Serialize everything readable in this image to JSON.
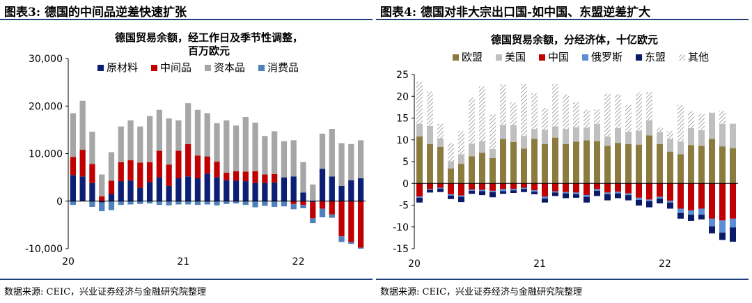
{
  "left": {
    "panel_title": "图表3: 德国的中间品逆差快速扩张",
    "source": "数据来源: CEIC，兴业证券经济与金融研究院整理"
  },
  "right": {
    "panel_title": "图表4: 德国对非大宗出口国-如中国、东盟逆差扩大",
    "source": "数据来源: CEIC，兴业证券经济与金融研究院整理"
  },
  "chart_data": [
    {
      "type": "bar",
      "stacked": true,
      "title": "德国贸易余额，经工作日及季节性调整，百万欧元",
      "title_lines": [
        "德国贸易余额，经工作日及季节性调整，",
        "百万欧元"
      ],
      "ylim": [
        -10000,
        30000
      ],
      "yticks": [
        -10000,
        0,
        10000,
        20000,
        30000
      ],
      "ytick_labels": [
        "-10,000",
        "0",
        "10,000",
        "20,000",
        "30,000"
      ],
      "xtick_labels": [
        "20",
        "21",
        "22"
      ],
      "xtick_index": [
        0,
        12,
        24
      ],
      "legend_position": "top",
      "categories": [
        "2020-01",
        "2020-02",
        "2020-03",
        "2020-04",
        "2020-05",
        "2020-06",
        "2020-07",
        "2020-08",
        "2020-09",
        "2020-10",
        "2020-11",
        "2020-12",
        "2021-01",
        "2021-02",
        "2021-03",
        "2021-04",
        "2021-05",
        "2021-06",
        "2021-07",
        "2021-08",
        "2021-09",
        "2021-10",
        "2021-11",
        "2021-12",
        "2022-01",
        "2022-02",
        "2022-03",
        "2022-04",
        "2022-05",
        "2022-06",
        "2022-07"
      ],
      "series": [
        {
          "name": "原材料",
          "color": "#0b1f74",
          "values": [
            5500,
            5200,
            3800,
            -300,
            1500,
            4200,
            4300,
            2800,
            4000,
            5000,
            3200,
            4800,
            5200,
            4800,
            5800,
            5000,
            4400,
            4300,
            4200,
            3800,
            3800,
            3900,
            5000,
            5200,
            1800,
            -200,
            6800,
            5200,
            3200,
            4400,
            4800
          ]
        },
        {
          "name": "中间品",
          "color": "#c00000",
          "values": [
            3800,
            5600,
            4000,
            1000,
            2800,
            4000,
            4300,
            5300,
            4200,
            5600,
            4500,
            5800,
            6800,
            4800,
            3600,
            3300,
            1600,
            2000,
            2000,
            2500,
            1800,
            1800,
            0,
            -600,
            -800,
            -3400,
            -1600,
            -2800,
            -7400,
            -8600,
            -9800
          ]
        },
        {
          "name": "资本品",
          "color": "#a6a6a6",
          "values": [
            9200,
            10300,
            6800,
            4600,
            6000,
            7500,
            8400,
            7600,
            9700,
            8600,
            9700,
            6400,
            8600,
            9600,
            9100,
            8100,
            11000,
            9600,
            11500,
            10200,
            8100,
            9000,
            7600,
            7600,
            6400,
            3500,
            7400,
            10000,
            9000,
            7600,
            8000
          ]
        },
        {
          "name": "消费品",
          "color": "#4f81bd",
          "values": [
            -800,
            0,
            -1200,
            -1800,
            -1900,
            -800,
            -700,
            -600,
            -500,
            -800,
            -900,
            -700,
            -700,
            -800,
            -700,
            -900,
            -600,
            -500,
            -800,
            -1300,
            -1000,
            -1200,
            -1100,
            -1100,
            -700,
            -1000,
            -1800,
            -700,
            -1200,
            -400,
            -200
          ]
        }
      ]
    },
    {
      "type": "bar",
      "stacked": true,
      "title": "德国贸易余额，分经济体，十亿欧元",
      "ylim": [
        -15,
        25
      ],
      "yticks": [
        -15,
        -10,
        -5,
        0,
        5,
        10,
        15,
        20,
        25
      ],
      "ytick_labels": [
        "-15",
        "-10",
        "-5",
        "0",
        "5",
        "10",
        "15",
        "20",
        "25"
      ],
      "xtick_labels": [
        "20",
        "21",
        "22"
      ],
      "xtick_index": [
        0,
        12,
        24
      ],
      "legend_position": "top",
      "categories": [
        "2020-01",
        "2020-02",
        "2020-03",
        "2020-04",
        "2020-05",
        "2020-06",
        "2020-07",
        "2020-08",
        "2020-09",
        "2020-10",
        "2020-11",
        "2020-12",
        "2021-01",
        "2021-02",
        "2021-03",
        "2021-04",
        "2021-05",
        "2021-06",
        "2021-07",
        "2021-08",
        "2021-09",
        "2021-10",
        "2021-11",
        "2021-12",
        "2022-01",
        "2022-02",
        "2022-03",
        "2022-04",
        "2022-05",
        "2022-06",
        "2022-07"
      ],
      "series": [
        {
          "name": "欧盟",
          "color": "#8c7b3f",
          "pattern": "solid",
          "values": [
            10.8,
            9.0,
            8.4,
            3.4,
            4.5,
            6.2,
            7.0,
            5.8,
            10.2,
            9.5,
            8.0,
            10.2,
            9.0,
            10.5,
            9.0,
            9.6,
            9.9,
            9.7,
            8.6,
            9.3,
            9.0,
            8.9,
            11.0,
            9.0,
            7.3,
            6.7,
            8.8,
            8.6,
            10.2,
            8.5,
            8.1
          ]
        },
        {
          "name": "美国",
          "color": "#bfbfbf",
          "pattern": "solid",
          "values": [
            2.9,
            4.2,
            2.0,
            1.7,
            2.2,
            2.9,
            2.7,
            2.1,
            3.2,
            3.9,
            2.9,
            2.3,
            3.3,
            2.6,
            3.5,
            3.3,
            2.9,
            4.0,
            2.2,
            3.4,
            2.9,
            3.2,
            3.5,
            2.8,
            2.9,
            2.9,
            3.9,
            3.6,
            6.0,
            5.2,
            5.6
          ]
        },
        {
          "name": "中国",
          "color": "#c00000",
          "pattern": "solid",
          "values": [
            -3.0,
            -1.3,
            -1.0,
            -2.5,
            -2.8,
            -1.4,
            -1.5,
            -1.7,
            -1.3,
            -1.3,
            -1.0,
            -1.6,
            -3.0,
            -1.8,
            -2.0,
            -2.1,
            -2.7,
            -1.3,
            -2.1,
            -1.9,
            -2.3,
            -3.3,
            -3.7,
            -3.1,
            -4.0,
            -5.8,
            -6.2,
            -5.8,
            -8.1,
            -8.5,
            -8.1
          ]
        },
        {
          "name": "俄罗斯",
          "color": "#5b8ed6",
          "pattern": "solid",
          "values": [
            -0.3,
            -0.2,
            -0.2,
            -0.3,
            -0.3,
            -0.3,
            -0.3,
            -0.3,
            -0.5,
            -0.3,
            -0.3,
            -0.3,
            -0.5,
            -0.3,
            -0.3,
            -0.4,
            -0.4,
            -0.4,
            -0.4,
            -0.4,
            -0.4,
            -0.5,
            -0.4,
            -0.4,
            -0.4,
            -1.0,
            -1.0,
            -1.4,
            -1.8,
            -2.8,
            -2.0
          ]
        },
        {
          "name": "东盟",
          "color": "#0a1a66",
          "pattern": "solid",
          "values": [
            -1.1,
            -0.6,
            -0.8,
            -0.8,
            -1.2,
            -0.7,
            -0.9,
            -1.2,
            -0.6,
            -0.6,
            -0.7,
            -0.6,
            -0.9,
            -0.8,
            -1.1,
            -0.8,
            -1.3,
            -1.2,
            -1.4,
            -1.1,
            -1.2,
            -1.3,
            -1.4,
            -1.1,
            -1.4,
            -1.3,
            -1.4,
            -1.1,
            -1.6,
            -1.7,
            -3.3
          ]
        },
        {
          "name": "其他",
          "color": "#a6a6a6",
          "pattern": "hatch",
          "values": [
            9.6,
            7.9,
            3.3,
            4.2,
            5.3,
            10.6,
            12.5,
            7.9,
            9.3,
            5.2,
            11.9,
            8.2,
            5.0,
            9.7,
            7.9,
            5.7,
            4.1,
            3.3,
            9.8,
            7.8,
            6.1,
            8.8,
            6.5,
            1.0,
            1.8,
            8.4,
            3.9,
            3.8,
            0.1,
            3.0,
            0
          ]
        }
      ]
    }
  ]
}
